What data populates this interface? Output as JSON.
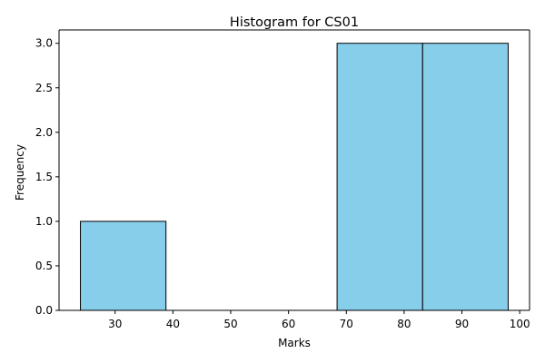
{
  "chart_data": {
    "type": "bar",
    "title": "Histogram for CS01",
    "xlabel": "Marks",
    "ylabel": "Frequency",
    "bins": [
      {
        "start": 24.0,
        "end": 38.8,
        "count": 1
      },
      {
        "start": 38.8,
        "end": 53.6,
        "count": 0
      },
      {
        "start": 53.6,
        "end": 68.4,
        "count": 0
      },
      {
        "start": 68.4,
        "end": 83.2,
        "count": 3
      },
      {
        "start": 83.2,
        "end": 98.0,
        "count": 3
      }
    ],
    "xlim": [
      20.3,
      101.7
    ],
    "ylim": [
      0,
      3.15
    ],
    "x_ticks": [
      30,
      40,
      50,
      60,
      70,
      80,
      90,
      100
    ],
    "y_ticks": [
      0.0,
      0.5,
      1.0,
      1.5,
      2.0,
      2.5,
      3.0
    ],
    "x_tick_labels": [
      "30",
      "40",
      "50",
      "60",
      "70",
      "80",
      "90",
      "100"
    ],
    "y_tick_labels": [
      "0.0",
      "0.5",
      "1.0",
      "1.5",
      "2.0",
      "2.5",
      "3.0"
    ],
    "grid": false,
    "bar_color": "#87CEEB",
    "edge_color": "#000000"
  }
}
